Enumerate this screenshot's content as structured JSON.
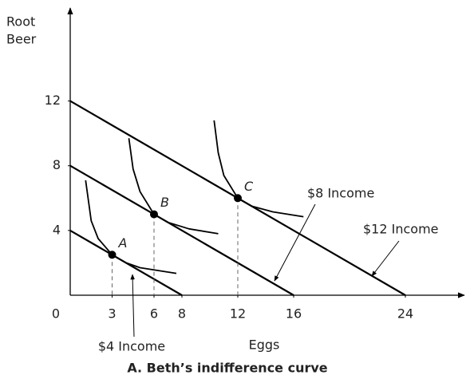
{
  "chart_data": {
    "type": "line",
    "title": "A. Beth’s indifference curve",
    "x_label": "Eggs",
    "y_label": [
      "Root",
      "Beer"
    ],
    "xlim": [
      0,
      28
    ],
    "ylim": [
      0,
      17.5
    ],
    "xticks": [
      0,
      3,
      6,
      8,
      12,
      16,
      24
    ],
    "yticks": [
      4,
      8,
      12
    ],
    "color": "#000000",
    "budget_lines": [
      {
        "name": "$4 Income",
        "x": [
          0,
          8
        ],
        "values": [
          4,
          0
        ]
      },
      {
        "name": "$8 Income",
        "x": [
          0,
          16
        ],
        "values": [
          8,
          0
        ]
      },
      {
        "name": "$12 Income",
        "x": [
          0,
          24
        ],
        "values": [
          12,
          0
        ]
      }
    ],
    "indifference_curves": [
      {
        "x": [
          1.1,
          1.5,
          2,
          3,
          4,
          5,
          6.5,
          7.6
        ],
        "values": [
          7.1,
          4.6,
          3.5,
          2.5,
          2.0,
          1.7,
          1.5,
          1.35
        ]
      },
      {
        "x": [
          4.2,
          4.5,
          5,
          6,
          7,
          8.5,
          10.6
        ],
        "values": [
          9.7,
          7.8,
          6.4,
          5,
          4.5,
          4.1,
          3.8
        ]
      },
      {
        "x": [
          10.3,
          10.6,
          11,
          12,
          13,
          14.5,
          16.7
        ],
        "values": [
          10.8,
          8.8,
          7.4,
          6,
          5.5,
          5.15,
          4.85
        ]
      }
    ],
    "points": [
      {
        "label": "A",
        "x": 3,
        "y": 2.5
      },
      {
        "label": "B",
        "x": 6,
        "y": 5
      },
      {
        "label": "C",
        "x": 12,
        "y": 6
      }
    ]
  }
}
